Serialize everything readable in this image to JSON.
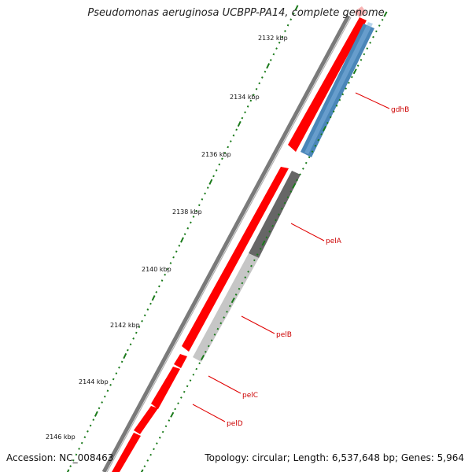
{
  "title": "Pseudomonas aeruginosa UCBPP-PA14, complete genome",
  "footer": {
    "accession": "Accession: NC_008463",
    "summary": "Topology: circular; Length: 6,537,648 bp; Genes: 5,964"
  },
  "ruler": {
    "ticks": [
      "2132 kbp",
      "2134 kbp",
      "2136 kbp",
      "2138 kbp",
      "2140 kbp",
      "2142 kbp",
      "2144 kbp",
      "2146 kbp"
    ],
    "color": "#1a7a1a"
  },
  "genes": [
    {
      "label": "gdhB",
      "color": "#4a86b8"
    },
    {
      "label": "pelA",
      "color": "#666666"
    },
    {
      "label": "pelB",
      "color": "#c0c0c0"
    },
    {
      "label": "pelC",
      "color": "#ffffff"
    },
    {
      "label": "pelD",
      "color": "#ffffff"
    }
  ],
  "colors": {
    "backbone": "#808080",
    "cds_red": "#ff0000",
    "label_text": "#cc0000",
    "leader_line": "#e00000"
  }
}
